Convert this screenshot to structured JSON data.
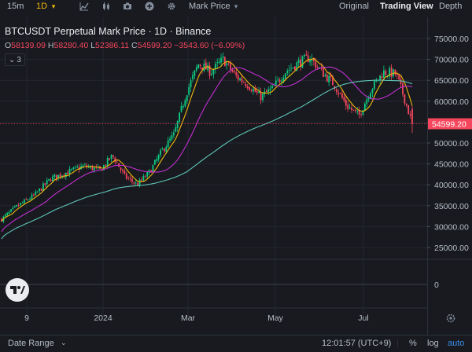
{
  "toolbar": {
    "interval_15m": "15m",
    "interval_1d": "1D",
    "views": [
      "Original",
      "Trading View",
      "Depth"
    ],
    "mark_price_label": "Mark Price"
  },
  "legend": {
    "title": "BTCUSDT Perpetual Mark Price · 1D · Binance",
    "open_label": "O",
    "open": "58139.09",
    "high_label": "H",
    "high": "58280.40",
    "low_label": "L",
    "low": "52386.11",
    "close_label": "C",
    "close": "54599.20",
    "change": "−3543.60 (−6.09%)",
    "collapse_count": "3"
  },
  "price_axis": {
    "ticks": [
      "75000.00",
      "70000.00",
      "65000.00",
      "60000.00",
      "55000.00",
      "50000.00",
      "45000.00",
      "40000.00",
      "35000.00",
      "30000.00",
      "25000.00"
    ],
    "current_price": "54599.20",
    "volume_zero": "0"
  },
  "time_axis": {
    "ticks": [
      "9",
      "2024",
      "Mar",
      "May",
      "Jul"
    ]
  },
  "bottom": {
    "date_range": "Date Range",
    "clock": "12:01:57 (UTC+9)",
    "percent": "%",
    "log": "log",
    "auto": "auto"
  },
  "colors": {
    "up": "#0ecb81",
    "down": "#f6465d",
    "ma_short": "#f0b90b",
    "ma_mid": "#c22ed0",
    "ma_long": "#5ec4b6",
    "accent": "#f0b90b",
    "link": "#3a8fe8"
  },
  "chart_data": {
    "type": "candlestick",
    "symbol": "BTCUSDT Perpetual",
    "interval": "1D",
    "ylim": [
      22000,
      77000
    ],
    "current_price": 54599.2,
    "close_anchors": [
      {
        "t": 0,
        "c": 31800
      },
      {
        "t": 0.04,
        "c": 35000
      },
      {
        "t": 0.08,
        "c": 37500
      },
      {
        "t": 0.12,
        "c": 41500
      },
      {
        "t": 0.16,
        "c": 43000
      },
      {
        "t": 0.2,
        "c": 44500
      },
      {
        "t": 0.24,
        "c": 43500
      },
      {
        "t": 0.27,
        "c": 47000
      },
      {
        "t": 0.3,
        "c": 42000
      },
      {
        "t": 0.33,
        "c": 40000
      },
      {
        "t": 0.36,
        "c": 43000
      },
      {
        "t": 0.39,
        "c": 48000
      },
      {
        "t": 0.42,
        "c": 52000
      },
      {
        "t": 0.45,
        "c": 62000
      },
      {
        "t": 0.48,
        "c": 69000
      },
      {
        "t": 0.51,
        "c": 67000
      },
      {
        "t": 0.54,
        "c": 70000
      },
      {
        "t": 0.57,
        "c": 66000
      },
      {
        "t": 0.6,
        "c": 64000
      },
      {
        "t": 0.63,
        "c": 61000
      },
      {
        "t": 0.66,
        "c": 63000
      },
      {
        "t": 0.69,
        "c": 67000
      },
      {
        "t": 0.72,
        "c": 69000
      },
      {
        "t": 0.75,
        "c": 70500
      },
      {
        "t": 0.78,
        "c": 67000
      },
      {
        "t": 0.81,
        "c": 64000
      },
      {
        "t": 0.84,
        "c": 59000
      },
      {
        "t": 0.87,
        "c": 56500
      },
      {
        "t": 0.9,
        "c": 63000
      },
      {
        "t": 0.93,
        "c": 67000
      },
      {
        "t": 0.96,
        "c": 66500
      },
      {
        "t": 0.98,
        "c": 61000
      },
      {
        "t": 1.0,
        "c": 54599
      }
    ]
  }
}
